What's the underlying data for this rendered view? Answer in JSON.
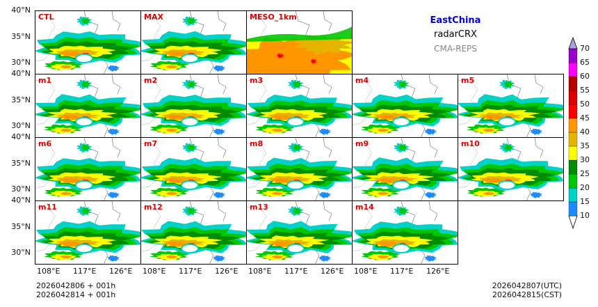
{
  "legend": {
    "region": "EastChina",
    "product": "radarCRX",
    "system": "CMA-REPS",
    "region_color": "#0000dd",
    "product_color": "#000000",
    "system_color": "#888888"
  },
  "panels": [
    {
      "name": "CTL"
    },
    {
      "name": "MAX"
    },
    {
      "name": "MESO_1km"
    },
    {
      "name": "m1"
    },
    {
      "name": "m2"
    },
    {
      "name": "m3"
    },
    {
      "name": "m4"
    },
    {
      "name": "m5"
    },
    {
      "name": "m6"
    },
    {
      "name": "m7"
    },
    {
      "name": "m8"
    },
    {
      "name": "m9"
    },
    {
      "name": "m10"
    },
    {
      "name": "m11"
    },
    {
      "name": "m12"
    },
    {
      "name": "m13"
    },
    {
      "name": "m14"
    }
  ],
  "axes": {
    "lat_labels": [
      "40°N",
      "35°N",
      "30°N"
    ],
    "lon_labels": [
      "108°E",
      "117°E",
      "126°E"
    ]
  },
  "colorbar": {
    "levels": [
      "10",
      "15",
      "20",
      "25",
      "30",
      "35",
      "40",
      "45",
      "50",
      "55",
      "60",
      "65",
      "70"
    ],
    "colors": [
      "#1e8cff",
      "#00d2c8",
      "#00c800",
      "#008c00",
      "#ffff00",
      "#e6b400",
      "#ff9600",
      "#ff0000",
      "#dc0000",
      "#b40000",
      "#ff00ff",
      "#9600c8",
      "#b0a0e0"
    ]
  },
  "footer": {
    "init_line1": "2026042806  +  001h",
    "init_line2": "2026042814  +  001h",
    "valid_utc": "2026042807(UTC)",
    "valid_cst": "2026042815(CST)"
  }
}
